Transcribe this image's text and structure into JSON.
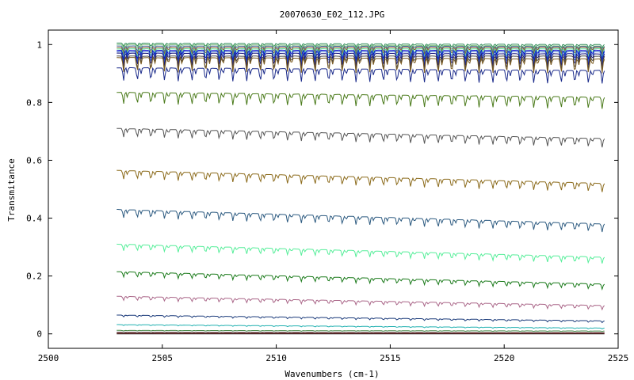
{
  "chart_data": {
    "type": "line",
    "title": "20070630_E02_112.JPG",
    "xlabel": "Wavenumbers (cm-1)",
    "ylabel": "Transmitance",
    "xlim": [
      2500,
      2525
    ],
    "ylim": [
      -0.05,
      1.05
    ],
    "x_ticks": [
      "2500",
      "2505",
      "2510",
      "2515",
      "2520",
      "2525"
    ],
    "y_ticks": [
      "0",
      "0.2",
      "0.4",
      "0.6",
      "0.8",
      "1"
    ],
    "grid": false,
    "legend": "none",
    "x_range_data": [
      2503,
      2524.4
    ],
    "line_period_cm": 0.6,
    "series": [
      {
        "start": 1.005,
        "end": 1.0,
        "dip": 0.012,
        "color": "#2e8b57"
      },
      {
        "start": 1.0,
        "end": 0.995,
        "dip": 0.015,
        "color": "#7fbf7f"
      },
      {
        "start": 0.995,
        "end": 0.993,
        "dip": 0.02,
        "color": "#4a6fa5"
      },
      {
        "start": 0.99,
        "end": 0.99,
        "dip": 0.025,
        "color": "#8b5a2b"
      },
      {
        "start": 0.985,
        "end": 0.985,
        "dip": 0.03,
        "color": "#55dd99"
      },
      {
        "start": 0.98,
        "end": 0.98,
        "dip": 0.035,
        "color": "#0000cc"
      },
      {
        "start": 0.975,
        "end": 0.975,
        "dip": 0.04,
        "color": "#3366cc"
      },
      {
        "start": 0.97,
        "end": 0.968,
        "dip": 0.045,
        "color": "#1a1a80"
      },
      {
        "start": 0.96,
        "end": 0.96,
        "dip": 0.05,
        "color": "#444444"
      },
      {
        "start": 0.955,
        "end": 0.95,
        "dip": 0.05,
        "color": "#7a5a20"
      },
      {
        "start": 0.92,
        "end": 0.91,
        "dip": 0.045,
        "color": "#1a2a8a"
      },
      {
        "start": 0.835,
        "end": 0.818,
        "dip": 0.04,
        "color": "#4a7a1a"
      },
      {
        "start": 0.71,
        "end": 0.675,
        "dip": 0.03,
        "color": "#555555"
      },
      {
        "start": 0.565,
        "end": 0.52,
        "dip": 0.03,
        "color": "#8b6a1a"
      },
      {
        "start": 0.43,
        "end": 0.38,
        "dip": 0.028,
        "color": "#2c5a80"
      },
      {
        "start": 0.31,
        "end": 0.265,
        "dip": 0.022,
        "color": "#55ee99"
      },
      {
        "start": 0.215,
        "end": 0.172,
        "dip": 0.018,
        "color": "#1a7a1a"
      },
      {
        "start": 0.13,
        "end": 0.098,
        "dip": 0.014,
        "color": "#aa6688"
      },
      {
        "start": 0.065,
        "end": 0.045,
        "dip": 0.006,
        "color": "#1a3a7a"
      },
      {
        "start": 0.032,
        "end": 0.02,
        "dip": 0.003,
        "color": "#20b0b0"
      },
      {
        "start": 0.012,
        "end": 0.01,
        "dip": 0.002,
        "color": "#4a8a4a"
      },
      {
        "start": 0.005,
        "end": 0.004,
        "dip": 0.001,
        "color": "#1a1a1a"
      },
      {
        "start": 0.002,
        "end": 0.002,
        "dip": 0.001,
        "color": "#cc3333"
      },
      {
        "start": 0.0,
        "end": 0.0,
        "dip": 0.0,
        "color": "#222222"
      }
    ]
  }
}
